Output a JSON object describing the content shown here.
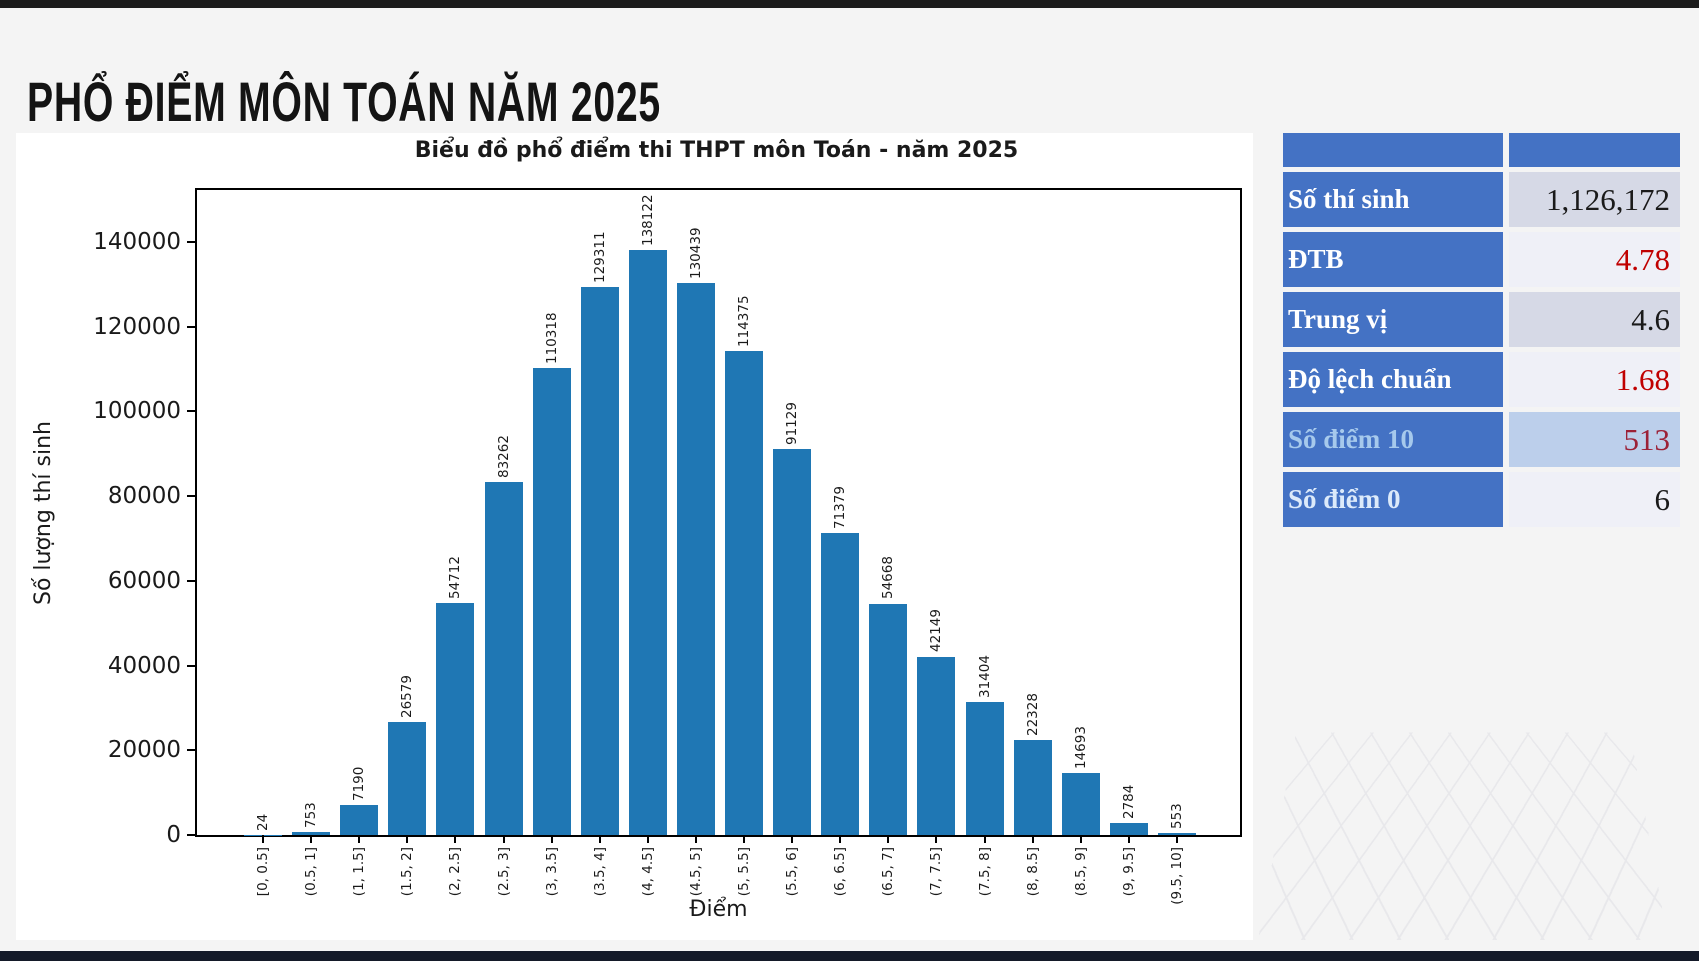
{
  "page": {
    "title": "PHỔ ĐIỂM MÔN TOÁN NĂM 2025"
  },
  "chart_data": {
    "type": "bar",
    "title": "Biểu đồ phổ điểm thi THPT môn Toán - năm 2025",
    "xlabel": "Điểm",
    "ylabel": "Số lượng thí sinh",
    "categories": [
      "[0, 0.5]",
      "(0.5, 1]",
      "(1, 1.5]",
      "(1.5, 2]",
      "(2, 2.5]",
      "(2.5, 3]",
      "(3, 3.5]",
      "(3.5, 4]",
      "(4, 4.5]",
      "(4.5, 5]",
      "(5, 5.5]",
      "(5.5, 6]",
      "(6, 6.5]",
      "(6.5, 7]",
      "(7, 7.5]",
      "(7.5, 8]",
      "(8, 8.5]",
      "(8.5, 9]",
      "(9, 9.5]",
      "(9.5, 10]"
    ],
    "values": [
      24,
      753,
      7190,
      26579,
      54712,
      83262,
      110318,
      129311,
      138122,
      130439,
      114375,
      91129,
      71379,
      54668,
      42149,
      31404,
      22328,
      14693,
      2784,
      553
    ],
    "bar_value_labels": [
      "24",
      "753",
      "7190",
      "26579",
      "54712",
      "83262",
      "110318",
      "129311",
      "138122",
      "130439",
      "114375",
      "91129",
      "71379",
      "54668",
      "42149",
      "31404",
      "22328",
      "14693",
      "2784",
      "553"
    ],
    "yticks": [
      0,
      20000,
      40000,
      60000,
      80000,
      100000,
      120000,
      140000
    ],
    "ylim": [
      0,
      152300
    ],
    "bar_color": "#1f77b4",
    "grid": false,
    "legend": null
  },
  "stats_table": {
    "header_color": "#4472c4",
    "rows": [
      {
        "label": "Số thí sinh",
        "value": "1,126,172",
        "label_color": "#ffffff",
        "value_color": "#1a1a1a",
        "cell_bg": "#d6d9e6"
      },
      {
        "label": "ĐTB",
        "value": "4.78",
        "label_color": "#ffffff",
        "value_color": "#c00000",
        "cell_bg": "#eff0f7"
      },
      {
        "label": "Trung vị",
        "value": "4.6",
        "label_color": "#ffffff",
        "value_color": "#1a1a1a",
        "cell_bg": "#d6d9e6"
      },
      {
        "label": "Độ lệch chuẩn",
        "value": "1.68",
        "label_color": "#ffffff",
        "value_color": "#c00000",
        "cell_bg": "#eff0f7"
      },
      {
        "label": "Số điểm 10",
        "value": "513",
        "label_color": "#a6c9ec",
        "value_color": "#9c2137",
        "cell_bg": "#bccfeb"
      },
      {
        "label": "Số điểm 0",
        "value": "6",
        "label_color": "#dcEAfa",
        "value_color": "#1a1a1a",
        "cell_bg": "#eff0f7"
      }
    ]
  }
}
